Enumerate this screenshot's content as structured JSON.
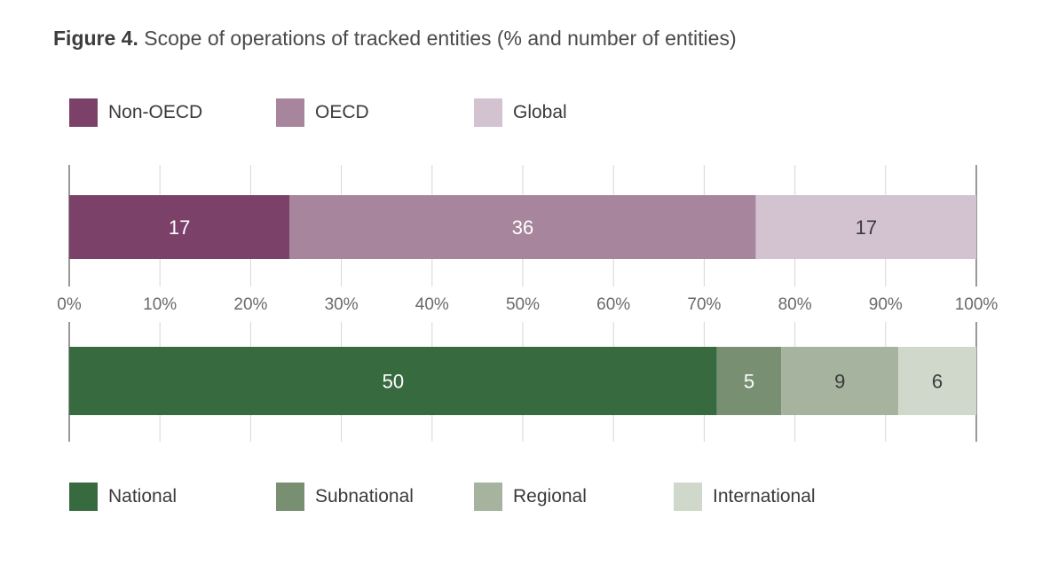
{
  "title": {
    "figure_label": "Figure 4.",
    "text": "Scope of operations of tracked entities (% and number of entities)"
  },
  "chart_data": {
    "type": "bar",
    "orientation": "horizontal",
    "stacked": true,
    "normalized": true,
    "xlim": [
      0,
      100
    ],
    "x_ticks": [
      "0%",
      "10%",
      "20%",
      "30%",
      "40%",
      "50%",
      "60%",
      "70%",
      "80%",
      "90%",
      "100%"
    ],
    "grid": "vertical",
    "bars": [
      {
        "segments": [
          {
            "name": "Non-OECD",
            "count": 17,
            "percent": 24.3,
            "color": "#7b4169",
            "label_color": "#ffffff"
          },
          {
            "name": "OECD",
            "count": 36,
            "percent": 51.4,
            "color": "#a7869d",
            "label_color": "#ffffff"
          },
          {
            "name": "Global",
            "count": 17,
            "percent": 24.3,
            "color": "#d3c3d0",
            "label_color": "#3a3a3a"
          }
        ],
        "legend_placement": "top"
      },
      {
        "segments": [
          {
            "name": "National",
            "count": 50,
            "percent": 71.4,
            "color": "#386a3f",
            "label_color": "#ffffff"
          },
          {
            "name": "Subnational",
            "count": 5,
            "percent": 7.1,
            "color": "#788f72",
            "label_color": "#ffffff"
          },
          {
            "name": "Regional",
            "count": 9,
            "percent": 12.9,
            "color": "#a6b39e",
            "label_color": "#3a3a3a"
          },
          {
            "name": "International",
            "count": 6,
            "percent": 8.6,
            "color": "#d0d8cb",
            "label_color": "#3a3a3a"
          }
        ],
        "legend_placement": "bottom"
      }
    ]
  }
}
